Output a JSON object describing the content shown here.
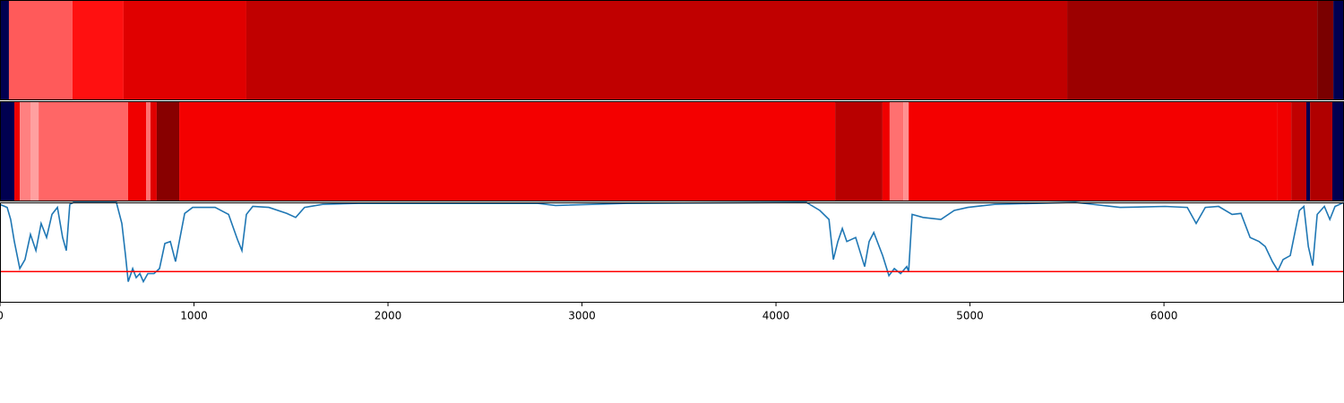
{
  "chart_data": [
    {
      "type": "band",
      "xlim": [
        0,
        6928
      ],
      "bands": [
        {
          "x0": 0,
          "x1": 46,
          "color": "#000050"
        },
        {
          "x0": 46,
          "x1": 374,
          "color": "#ff5a5a"
        },
        {
          "x0": 374,
          "x1": 637,
          "color": "#ff1010"
        },
        {
          "x0": 637,
          "x1": 1270,
          "color": "#e00000"
        },
        {
          "x0": 1270,
          "x1": 5501,
          "color": "#c00000"
        },
        {
          "x0": 5501,
          "x1": 6790,
          "color": "#9c0000"
        },
        {
          "x0": 6790,
          "x1": 6873,
          "color": "#7a0000"
        },
        {
          "x0": 6873,
          "x1": 6928,
          "color": "#000050"
        }
      ]
    },
    {
      "type": "band",
      "xlim": [
        0,
        6928
      ],
      "bands": [
        {
          "x0": 0,
          "x1": 74,
          "color": "#000050"
        },
        {
          "x0": 74,
          "x1": 102,
          "color": "#f00000"
        },
        {
          "x0": 102,
          "x1": 157,
          "color": "#ff8080"
        },
        {
          "x0": 157,
          "x1": 199,
          "color": "#ffa0a0"
        },
        {
          "x0": 199,
          "x1": 660,
          "color": "#ff6666"
        },
        {
          "x0": 660,
          "x1": 753,
          "color": "#f00000"
        },
        {
          "x0": 753,
          "x1": 776,
          "color": "#ff7070"
        },
        {
          "x0": 776,
          "x1": 808,
          "color": "#e00000"
        },
        {
          "x0": 808,
          "x1": 924,
          "color": "#880000"
        },
        {
          "x0": 924,
          "x1": 4305,
          "color": "#f40000"
        },
        {
          "x0": 4305,
          "x1": 4549,
          "color": "#b80000"
        },
        {
          "x0": 4549,
          "x1": 4586,
          "color": "#f00000"
        },
        {
          "x0": 4586,
          "x1": 4656,
          "color": "#ff7070"
        },
        {
          "x0": 4656,
          "x1": 4684,
          "color": "#ff9090"
        },
        {
          "x0": 4684,
          "x1": 6582,
          "color": "#f40000"
        },
        {
          "x0": 6582,
          "x1": 6656,
          "color": "#f00000"
        },
        {
          "x0": 6656,
          "x1": 6734,
          "color": "#c00000"
        },
        {
          "x0": 6734,
          "x1": 6753,
          "color": "#000050"
        },
        {
          "x0": 6753,
          "x1": 6868,
          "color": "#b00000"
        },
        {
          "x0": 6868,
          "x1": 6928,
          "color": "#000050"
        }
      ]
    },
    {
      "type": "line",
      "xlim": [
        0,
        6928
      ],
      "ylim": [
        0,
        1
      ],
      "xticks": [
        0,
        1000,
        2000,
        3000,
        4000,
        5000,
        6000
      ],
      "hline": {
        "value": 0.31,
        "color": "#ff0000"
      },
      "series": [
        {
          "color": "#1f77b4",
          "x": [
            0,
            37,
            55,
            74,
            102,
            129,
            157,
            185,
            212,
            240,
            268,
            296,
            323,
            342,
            360,
            379,
            600,
            628,
            647,
            661,
            684,
            702,
            721,
            739,
            762,
            794,
            822,
            850,
            878,
            905,
            924,
            952,
            993,
            1109,
            1178,
            1224,
            1247,
            1270,
            1303,
            1386,
            1478,
            1524,
            1570,
            1663,
            1848,
            2771,
            2864,
            3233,
            4157,
            4226,
            4273,
            4296,
            4319,
            4342,
            4365,
            4411,
            4457,
            4480,
            4504,
            4550,
            4582,
            4610,
            4642,
            4674,
            4684,
            4702,
            4758,
            4850,
            4919,
            4989,
            5127,
            5543,
            5774,
            6005,
            6120,
            6166,
            6213,
            6282,
            6351,
            6397,
            6444,
            6490,
            6522,
            6559,
            6587,
            6614,
            6651,
            6698,
            6721,
            6744,
            6767,
            6790,
            6827,
            6855,
            6882,
            6928
          ],
          "values": [
            0.98,
            0.95,
            0.83,
            0.61,
            0.34,
            0.43,
            0.68,
            0.52,
            0.79,
            0.65,
            0.88,
            0.95,
            0.65,
            0.52,
            0.98,
            1.0,
            1.0,
            0.79,
            0.47,
            0.21,
            0.34,
            0.25,
            0.29,
            0.21,
            0.29,
            0.29,
            0.34,
            0.59,
            0.61,
            0.41,
            0.61,
            0.89,
            0.95,
            0.95,
            0.88,
            0.63,
            0.52,
            0.88,
            0.96,
            0.95,
            0.89,
            0.85,
            0.95,
            0.98,
            0.99,
            0.99,
            0.97,
            0.99,
            1.0,
            0.92,
            0.83,
            0.43,
            0.61,
            0.74,
            0.61,
            0.65,
            0.36,
            0.61,
            0.7,
            0.47,
            0.27,
            0.34,
            0.29,
            0.36,
            0.31,
            0.88,
            0.85,
            0.83,
            0.92,
            0.95,
            0.98,
            1.0,
            0.95,
            0.96,
            0.95,
            0.79,
            0.95,
            0.96,
            0.88,
            0.89,
            0.65,
            0.61,
            0.56,
            0.41,
            0.32,
            0.43,
            0.47,
            0.92,
            0.96,
            0.56,
            0.37,
            0.88,
            0.96,
            0.83,
            0.96,
            1.0
          ]
        }
      ]
    }
  ]
}
